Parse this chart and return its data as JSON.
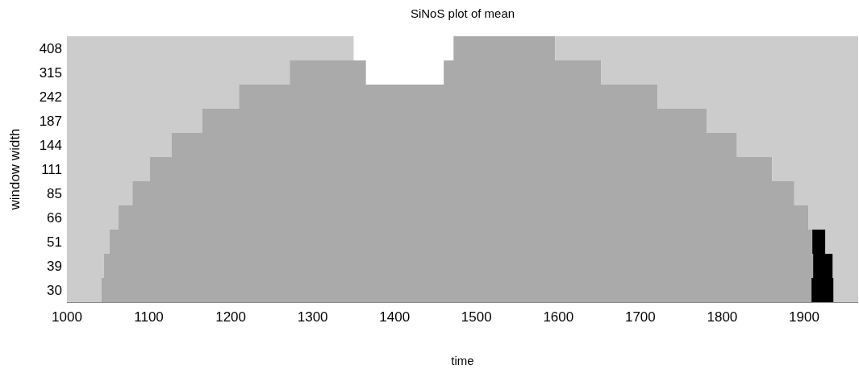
{
  "chart_data": {
    "type": "bar",
    "orientation": "horizontal",
    "title": "SiNoS plot of mean",
    "xlabel": "time",
    "ylabel": "window width",
    "categories": [
      "408",
      "315",
      "242",
      "187",
      "144",
      "111",
      "85",
      "66",
      "51",
      "39",
      "30"
    ],
    "series": [
      {
        "color": "#cccccc",
        "base": [
          1000,
          1000,
          1000,
          1000,
          1000,
          1000,
          1000,
          1000,
          1000,
          1000,
          1000
        ],
        "values": [
          350,
          272,
          210,
          165,
          128,
          101,
          80,
          63,
          52,
          45,
          42
        ]
      },
      {
        "color": "#aaaaaa",
        "base": [
          null,
          1272,
          1210,
          1165,
          1128,
          1101,
          1080,
          1063,
          1052,
          1045,
          1042
        ],
        "values": [
          null,
          93,
          511,
          616,
          690,
          760,
          808,
          842,
          858,
          866,
          867
        ]
      },
      {
        "color": "#aaaaaa",
        "base": [
          1472,
          1460,
          null,
          null,
          null,
          null,
          null,
          null,
          null,
          null,
          null
        ],
        "values": [
          124,
          192,
          null,
          null,
          null,
          null,
          null,
          null,
          null,
          null,
          null
        ]
      },
      {
        "color": "#000000",
        "base": [
          null,
          null,
          null,
          null,
          null,
          null,
          null,
          null,
          1910,
          1911,
          1909
        ],
        "values": [
          null,
          null,
          null,
          null,
          null,
          null,
          null,
          null,
          16,
          24,
          27
        ]
      },
      {
        "color": "#cccccc",
        "base": [
          1596,
          1652,
          1721,
          1781,
          1818,
          1861,
          1888,
          1905,
          1926,
          1935,
          1936
        ],
        "values": [
          370,
          314,
          245,
          185,
          148,
          105,
          78,
          61,
          40,
          31,
          30
        ]
      }
    ],
    "xlim": [
      1000,
      1966
    ],
    "xticks": [
      1000,
      1100,
      1200,
      1300,
      1400,
      1500,
      1600,
      1700,
      1800,
      1900
    ],
    "grid": false
  }
}
